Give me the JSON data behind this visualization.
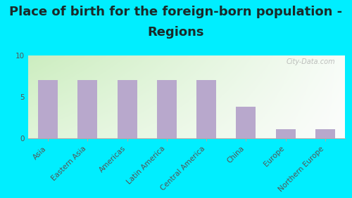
{
  "title_line1": "Place of birth for the foreign-born population -",
  "title_line2": "Regions",
  "categories": [
    "Asia",
    "Eastern Asia",
    "Americas",
    "Latin America",
    "Central America",
    "China",
    "Europe",
    "Northern Europe"
  ],
  "values": [
    7.0,
    7.0,
    7.0,
    7.0,
    7.0,
    3.8,
    1.1,
    1.1
  ],
  "bar_color": "#b8a8cc",
  "background_outer": "#00eeff",
  "ylim": [
    0,
    10
  ],
  "yticks": [
    0,
    5,
    10
  ],
  "title_fontsize": 13,
  "tick_fontsize": 7.5,
  "watermark": "City-Data.com",
  "title_color": "#1a2a2a",
  "grad_left": "#ccecc0",
  "grad_right": "#f0f8f0",
  "grad_top": "#e8f8e0",
  "grad_bottom": "#f8f8f8"
}
